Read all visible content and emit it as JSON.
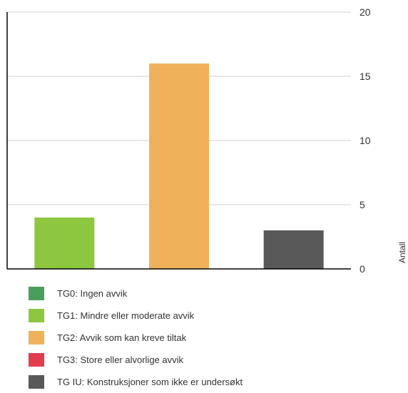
{
  "chart_data": {
    "type": "bar",
    "categories": [
      "TG1: Mindre eller moderate avvik",
      "TG2: Avvik som kan kreve tiltak",
      "TG IU: Konstruksjoner som ikke er undersøkt"
    ],
    "values": [
      4,
      16,
      3
    ],
    "bar_colors": [
      "#8dc63f",
      "#efb25a",
      "#595959"
    ],
    "ylabel": "Antall",
    "ylim": [
      0,
      20
    ],
    "yticks": [
      0,
      5,
      10,
      15,
      20
    ],
    "y_axis_side": "right",
    "grid": true,
    "legend_position": "bottom"
  },
  "legend": [
    {
      "label": "TG0: Ingen avvik",
      "color": "#4a9e5c"
    },
    {
      "label": "TG1: Mindre eller moderate avvik",
      "color": "#8dc63f"
    },
    {
      "label": "TG2: Avvik som kan kreve tiltak",
      "color": "#efb25a"
    },
    {
      "label": "TG3: Store eller alvorlige avvik",
      "color": "#e23c4f"
    },
    {
      "label": "TG IU: Konstruksjoner som ikke er undersøkt",
      "color": "#595959"
    }
  ]
}
